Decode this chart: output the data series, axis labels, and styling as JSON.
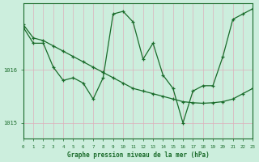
{
  "title": "Graphe pression niveau de la mer (hPa)",
  "background_color": "#cceedd",
  "grid_color_v": "#ddb0bb",
  "grid_color_h": "#ddb0bb",
  "line_color": "#1a6b2a",
  "x_min": 0,
  "x_max": 23,
  "y_min": 1014.7,
  "y_max": 1017.25,
  "yticks": [
    1015,
    1016
  ],
  "series1_x": [
    0,
    1,
    2,
    3,
    4,
    5,
    6,
    7,
    8,
    9,
    10,
    11,
    12,
    13,
    14,
    15,
    16,
    17,
    18,
    19,
    20,
    21,
    22,
    23
  ],
  "series1_y": [
    1016.8,
    1016.5,
    1016.5,
    1016.05,
    1015.8,
    1015.85,
    1015.75,
    1015.45,
    1015.85,
    1017.05,
    1017.1,
    1016.9,
    1016.2,
    1016.5,
    1015.9,
    1015.65,
    1015.0,
    1015.6,
    1015.7,
    1015.7,
    1016.25,
    1016.95,
    1017.05,
    1017.15
  ],
  "series2_x": [
    0,
    1,
    2,
    3,
    4,
    5,
    6,
    7,
    8,
    9,
    10,
    11,
    12,
    13,
    14,
    15,
    16,
    17,
    18,
    19,
    20,
    21,
    22,
    23
  ],
  "series2_y": [
    1016.85,
    1016.6,
    1016.55,
    1016.45,
    1016.35,
    1016.25,
    1016.15,
    1016.05,
    1015.95,
    1015.85,
    1015.75,
    1015.65,
    1015.6,
    1015.55,
    1015.5,
    1015.45,
    1015.4,
    1015.38,
    1015.37,
    1015.38,
    1015.4,
    1015.45,
    1015.55,
    1015.65
  ]
}
